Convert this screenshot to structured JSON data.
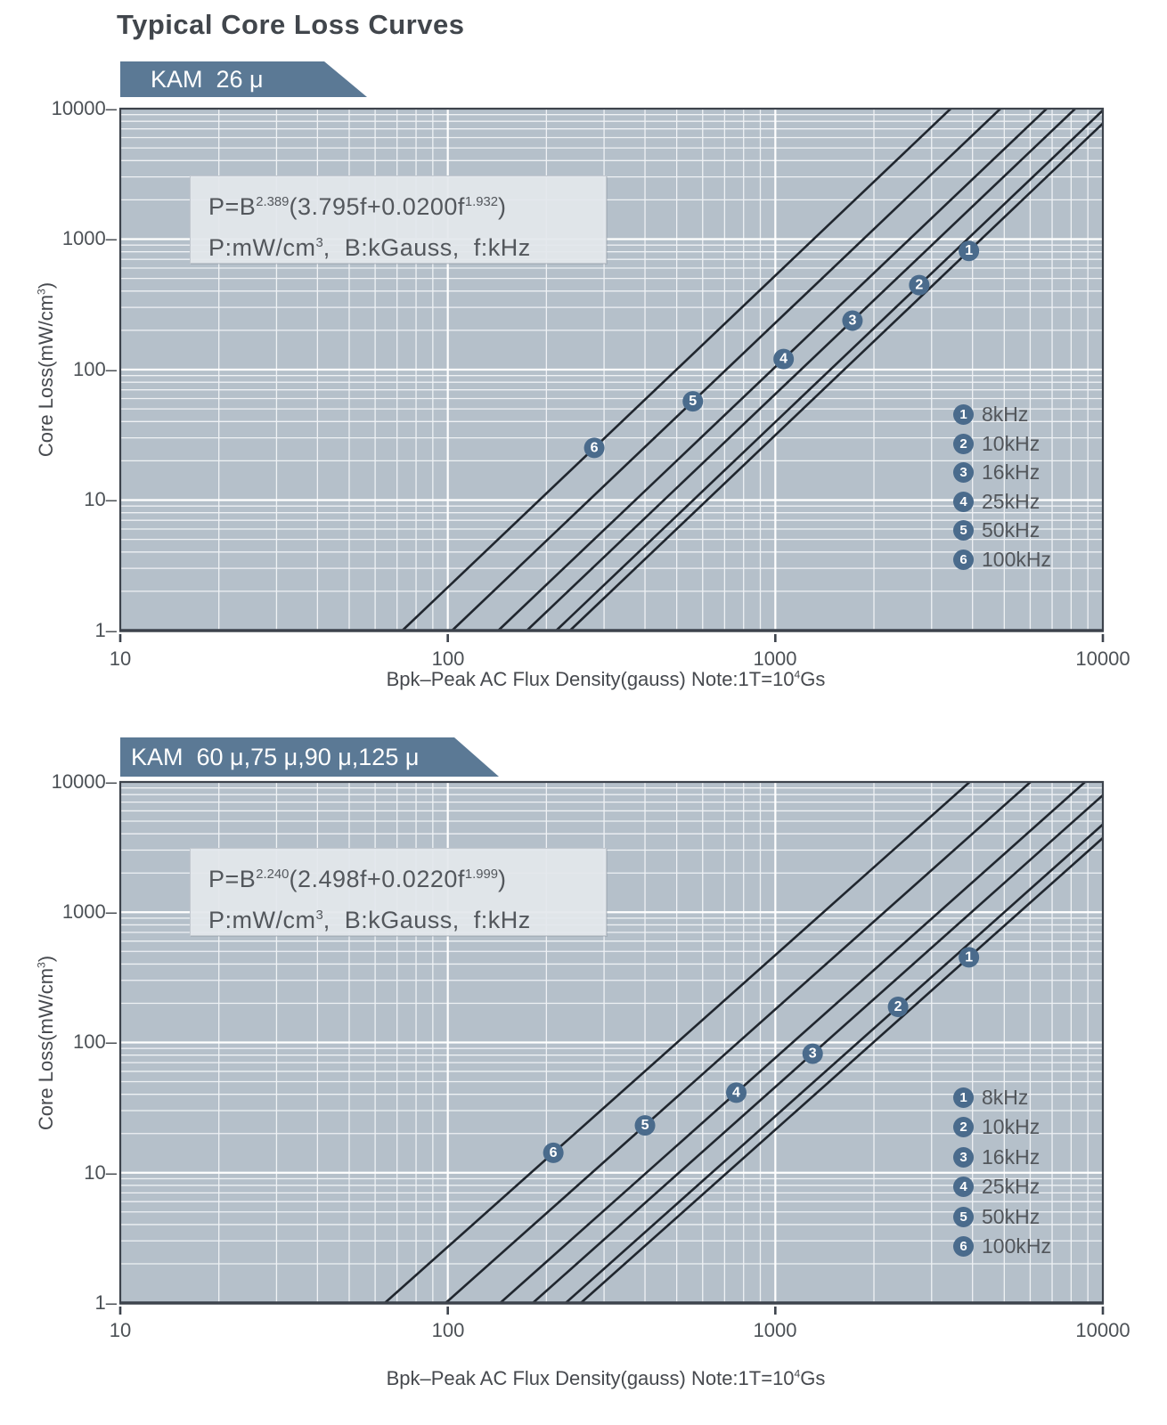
{
  "page_title": "Typical Core Loss Curves",
  "colors": {
    "plot_background": "#b5c0ca",
    "grid_minor": "#eef1f4",
    "grid_major": "#ffffff",
    "frame": "#3d434c",
    "curve": "#20262e",
    "marker_circle": "#4a6b8c",
    "banner": "#5b7995",
    "text": "#4c5156"
  },
  "chart_data": [
    {
      "type": "line",
      "banner": "KAM  26 μ",
      "formula": {
        "line1_parts": [
          "P=B",
          "2.389",
          "(3.795f+0.0200f",
          "1.932",
          ")"
        ],
        "line2_parts": [
          "P:mW/cm",
          "3",
          ",  B:kGauss,  f:kHz"
        ]
      },
      "model": {
        "b_exponent": 2.389,
        "c1": 3.795,
        "c2": 0.02,
        "f_exponent": 1.932,
        "units": "P in mW/cm3, B in kGauss, f in kHz"
      },
      "x_axis": {
        "title_pre": "Bpk–Peak AC Flux Density(gauss) Note:1T=10",
        "title_sup": "4",
        "title_post": "Gs",
        "scale": "log",
        "range_gauss": [
          10,
          10000
        ],
        "ticks": [
          10,
          100,
          1000,
          10000
        ],
        "tick_labels": [
          "10",
          "100",
          "1000",
          "10000"
        ]
      },
      "y_axis": {
        "title_pre": "Core Loss(mW/cm",
        "title_sup": "3",
        "title_post": ")",
        "scale": "log",
        "range": [
          1,
          10000
        ],
        "ticks": [
          10000,
          1000,
          100,
          10,
          1
        ],
        "tick_labels": [
          "10000–",
          "1000–",
          "100–",
          "10–",
          "1–"
        ]
      },
      "grid": true,
      "legend_position": "lower-right-inside",
      "series": [
        {
          "marker": "1",
          "label": "8kHz",
          "freq_khz": 8,
          "marker_x_gauss": 3900
        },
        {
          "marker": "2",
          "label": "10kHz",
          "freq_khz": 10,
          "marker_x_gauss": 2750
        },
        {
          "marker": "3",
          "label": "16kHz",
          "freq_khz": 16,
          "marker_x_gauss": 1720
        },
        {
          "marker": "4",
          "label": "25kHz",
          "freq_khz": 25,
          "marker_x_gauss": 1060
        },
        {
          "marker": "5",
          "label": "50kHz",
          "freq_khz": 50,
          "marker_x_gauss": 560
        },
        {
          "marker": "6",
          "label": "100kHz",
          "freq_khz": 100,
          "marker_x_gauss": 280
        }
      ]
    },
    {
      "type": "line",
      "banner": "KAM  60 μ,75 μ,90 μ,125 μ",
      "formula": {
        "line1_parts": [
          "P=B",
          "2.240",
          "(2.498f+0.0220f",
          "1.999",
          ")"
        ],
        "line2_parts": [
          "P:mW/cm",
          "3",
          ",  B:kGauss,  f:kHz"
        ]
      },
      "model": {
        "b_exponent": 2.24,
        "c1": 2.498,
        "c2": 0.022,
        "f_exponent": 1.999,
        "units": "P in mW/cm3, B in kGauss, f in kHz"
      },
      "x_axis": {
        "title_pre": "Bpk–Peak AC Flux Density(gauss) Note:1T=10",
        "title_sup": "4",
        "title_post": "Gs",
        "scale": "log",
        "range_gauss": [
          10,
          10000
        ],
        "ticks": [
          10,
          100,
          1000,
          10000
        ],
        "tick_labels": [
          "10",
          "100",
          "1000",
          "10000"
        ]
      },
      "y_axis": {
        "title_pre": "Core Loss(mW/cm",
        "title_sup": "3",
        "title_post": ")",
        "scale": "log",
        "range": [
          1,
          10000
        ],
        "ticks": [
          10000,
          1000,
          100,
          10,
          1
        ],
        "tick_labels": [
          "10000–",
          "1000–",
          "100–",
          "10–",
          "1–"
        ]
      },
      "grid": true,
      "legend_position": "lower-right-inside",
      "series": [
        {
          "marker": "1",
          "label": "8kHz",
          "freq_khz": 8,
          "marker_x_gauss": 3900
        },
        {
          "marker": "2",
          "label": "10kHz",
          "freq_khz": 10,
          "marker_x_gauss": 2370
        },
        {
          "marker": "3",
          "label": "16kHz",
          "freq_khz": 16,
          "marker_x_gauss": 1300
        },
        {
          "marker": "4",
          "label": "25kHz",
          "freq_khz": 25,
          "marker_x_gauss": 760
        },
        {
          "marker": "5",
          "label": "50kHz",
          "freq_khz": 50,
          "marker_x_gauss": 400
        },
        {
          "marker": "6",
          "label": "100kHz",
          "freq_khz": 100,
          "marker_x_gauss": 210
        }
      ]
    }
  ]
}
